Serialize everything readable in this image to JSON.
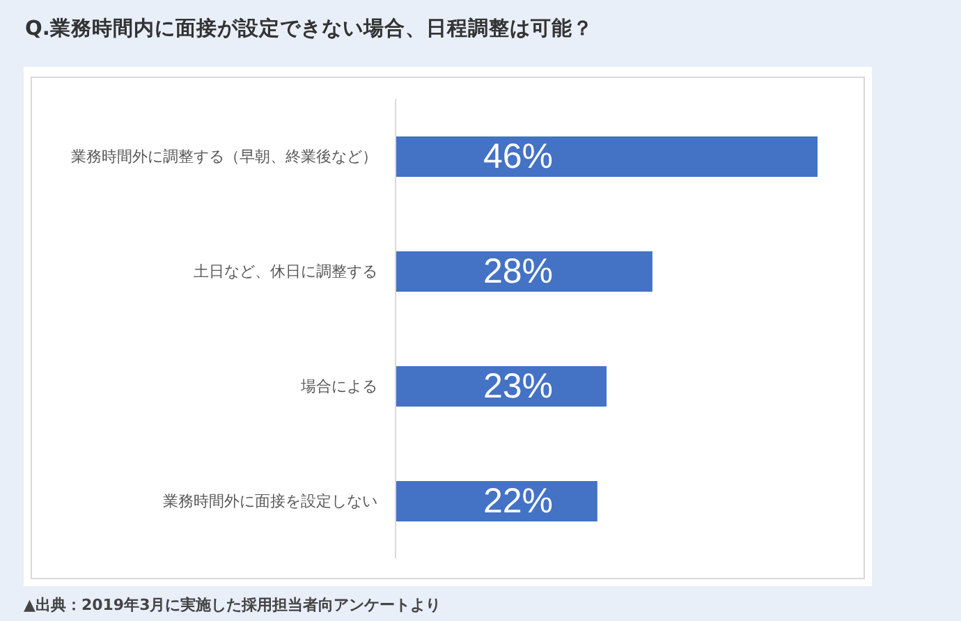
{
  "chart_data": {
    "type": "bar",
    "orientation": "horizontal",
    "title": "Q.業務時間内に面接が設定できない場合、日程調整は可能？",
    "categories": [
      "業務時間外に調整する（早朝、終業後など）",
      "土日など、休日に調整する",
      "場合による",
      "業務時間外に面接を設定しない"
    ],
    "values": [
      46,
      28,
      23,
      22
    ],
    "value_labels": [
      "46%",
      "28%",
      "23%",
      "22%"
    ],
    "color": "#4472c4",
    "tick_labels": "y",
    "annotations": [
      "▲出典：2019年3月に実施した採用担当者向アンケートより"
    ]
  }
}
